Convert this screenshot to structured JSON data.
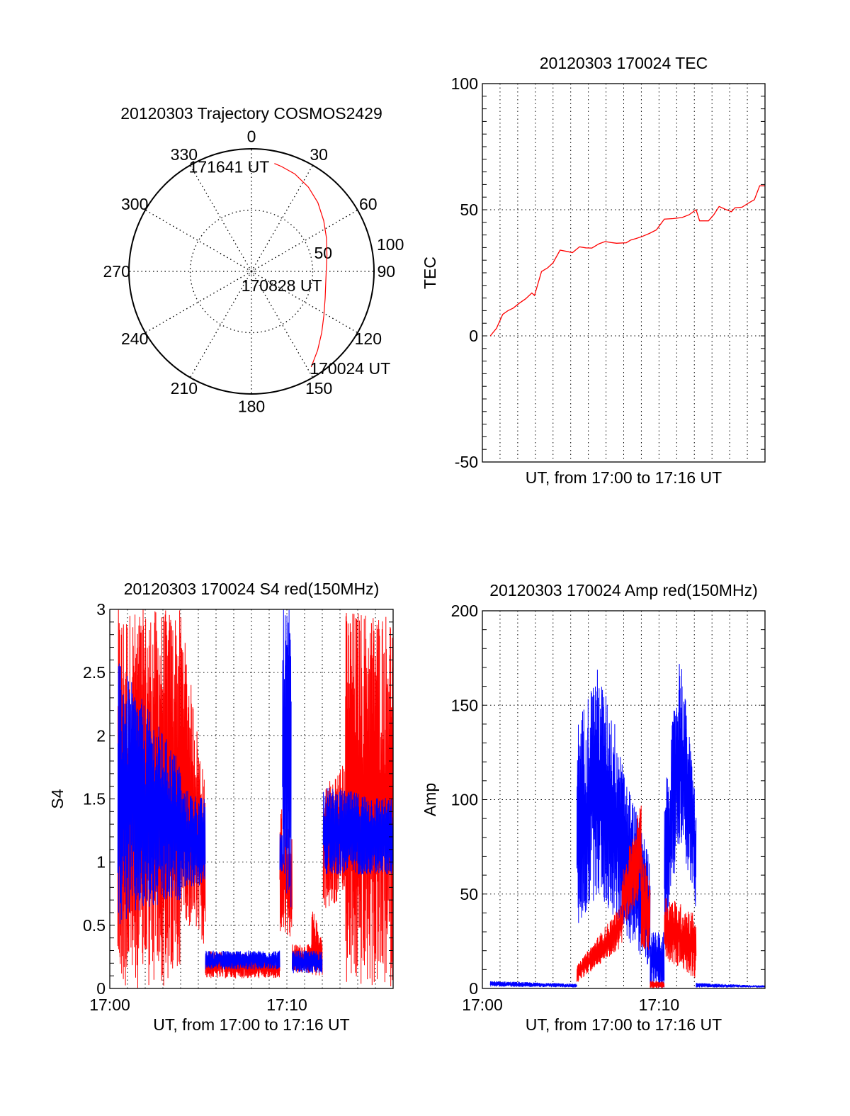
{
  "chart_data": [
    {
      "type": "polar",
      "title": "20120303 Trajectory COSMOS2429",
      "azimuth_labels": [
        "0",
        "30",
        "60",
        "90",
        "120",
        "150",
        "180",
        "210",
        "240",
        "270",
        "300",
        "330"
      ],
      "radial_range": [
        0,
        100
      ],
      "radial_tick_labels": [
        "50",
        "100"
      ],
      "radial_ticks": [
        50,
        100
      ],
      "trajectory": {
        "color": "#ff0000",
        "points": [
          {
            "az": 148,
            "r": 92
          },
          {
            "az": 140,
            "r": 84
          },
          {
            "az": 131,
            "r": 76
          },
          {
            "az": 121,
            "r": 69
          },
          {
            "az": 110,
            "r": 64
          },
          {
            "az": 100,
            "r": 61.5
          },
          {
            "az": 90,
            "r": 61
          },
          {
            "az": 78,
            "r": 63
          },
          {
            "az": 66,
            "r": 67
          },
          {
            "az": 55,
            "r": 72
          },
          {
            "az": 44,
            "r": 78
          },
          {
            "az": 34,
            "r": 83
          },
          {
            "az": 24,
            "r": 87
          },
          {
            "az": 16,
            "r": 89
          },
          {
            "az": 12,
            "r": 90
          }
        ],
        "labels": [
          {
            "text": "170024 UT",
            "az": 148,
            "r": 92
          },
          {
            "text": "170828 UT",
            "az": 90,
            "r": 61
          },
          {
            "text": "171641 UT",
            "az": 12,
            "r": 90
          }
        ]
      }
    },
    {
      "type": "line",
      "title": "20120303 170024 TEC",
      "xlabel": "UT, from 17:00 to 17:16 UT",
      "ylabel": "TEC",
      "xunits": "minutes after 17:00",
      "xlim": [
        0,
        16
      ],
      "ylim": [
        -50,
        100
      ],
      "yticks": [
        -50,
        0,
        50,
        100
      ],
      "ytick_labels": [
        "-50",
        "0",
        "50",
        "100"
      ],
      "ygrid": [
        0,
        50
      ],
      "yminor": 5,
      "xtick_labels": [],
      "series": [
        {
          "color": "#ff0000",
          "x": [
            0.45,
            0.8,
            1.15,
            1.45,
            1.75,
            2.1,
            2.45,
            2.8,
            2.95,
            3.35,
            3.7,
            4.0,
            4.4,
            4.75,
            5.1,
            5.5,
            5.85,
            6.2,
            6.6,
            6.95,
            7.3,
            7.6,
            8.15,
            8.4,
            8.7,
            9.05,
            9.45,
            9.85,
            10.3,
            10.8,
            11.3,
            11.7,
            12.1,
            12.3,
            12.8,
            13.1,
            13.4,
            13.75,
            14.1,
            14.3,
            14.7,
            15.1,
            15.4,
            15.7,
            16.0
          ],
          "y": [
            0,
            3,
            8.5,
            10,
            11,
            13,
            14.7,
            17,
            16,
            25.5,
            27,
            29,
            34,
            33.5,
            33,
            35.3,
            34.9,
            34.8,
            36.5,
            37.4,
            37,
            36.7,
            36.9,
            38,
            38.6,
            39.4,
            40.6,
            42,
            46.3,
            46.5,
            46.9,
            48,
            50,
            45.6,
            45.6,
            48,
            51.3,
            50.2,
            49.2,
            50.8,
            51,
            52.8,
            54,
            59.5,
            59.5
          ]
        }
      ]
    },
    {
      "type": "line",
      "title": "20120303 170024 S4 red(150MHz)",
      "xlabel": "UT, from 17:00 to 17:16 UT",
      "ylabel": "S4",
      "xunits": "minutes after 17:00",
      "xlim": [
        0,
        16
      ],
      "ylim": [
        0,
        3
      ],
      "yticks": [
        0,
        0.5,
        1,
        1.5,
        2,
        2.5,
        3
      ],
      "ytick_labels": [
        "0",
        "0.5",
        "1",
        "1.5",
        "2",
        "2.5",
        "3"
      ],
      "ygrid": [
        0.5,
        1,
        1.5,
        2,
        2.5
      ],
      "yminor": 0.1,
      "xtick_labels": [
        {
          "t": 0,
          "label": "17:00"
        },
        {
          "t": 10,
          "label": "17:10"
        }
      ],
      "series": [
        {
          "color": "#ff0000",
          "envelope": [
            {
              "t": [
                0.45,
                4.0
              ],
              "lo": [
                0,
                0
              ],
              "hi": [
                3,
                3
              ]
            },
            {
              "t": [
                4.0,
                5.4
              ],
              "lo": [
                0.6,
                0.3
              ],
              "hi": [
                3,
                1.6
              ]
            },
            {
              "t": [
                5.4,
                9.6
              ],
              "lo": [
                0.08,
                0.08
              ],
              "hi": [
                0.3,
                0.25
              ]
            },
            {
              "t": [
                9.6,
                10.3
              ],
              "lo": [
                0.4,
                0.4
              ],
              "hi": [
                1.5,
                1.2
              ]
            },
            {
              "t": [
                10.3,
                11.4
              ],
              "lo": [
                0.12,
                0.12
              ],
              "hi": [
                0.35,
                0.35
              ]
            },
            {
              "t": [
                11.4,
                12.0
              ],
              "lo": [
                0.1,
                0.1
              ],
              "hi": [
                0.65,
                0.4
              ]
            },
            {
              "t": [
                12.05,
                13.3
              ],
              "lo": [
                0.6,
                0.7
              ],
              "hi": [
                1.6,
                1.8
              ]
            },
            {
              "t": [
                13.3,
                16.0
              ],
              "lo": [
                0,
                0
              ],
              "hi": [
                3,
                3
              ]
            }
          ]
        },
        {
          "color": "#0000ff",
          "envelope": [
            {
              "t": [
                0.45,
                4.0
              ],
              "lo": [
                0.5,
                0.7
              ],
              "hi": [
                2.6,
                1.8
              ]
            },
            {
              "t": [
                4.0,
                5.4
              ],
              "lo": [
                0.8,
                0.8
              ],
              "hi": [
                1.6,
                1.5
              ]
            },
            {
              "t": [
                5.4,
                9.6
              ],
              "lo": [
                0.15,
                0.15
              ],
              "hi": [
                0.3,
                0.3
              ]
            },
            {
              "t": [
                9.6,
                9.75
              ],
              "lo": [
                0.9,
                0.9
              ],
              "hi": [
                1.3,
                1.3
              ]
            },
            {
              "t": [
                9.75,
                10.25
              ],
              "lo": [
                0.6,
                0.6
              ],
              "hi": [
                3,
                3
              ]
            },
            {
              "t": [
                10.3,
                12.0
              ],
              "lo": [
                0.12,
                0.12
              ],
              "hi": [
                0.3,
                0.3
              ]
            },
            {
              "t": [
                12.05,
                16.0
              ],
              "lo": [
                0.9,
                0.9
              ],
              "hi": [
                1.6,
                1.5
              ]
            }
          ]
        }
      ]
    },
    {
      "type": "line",
      "title": "20120303 170024 Amp red(150MHz)",
      "xlabel": "UT, from 17:00 to 17:16 UT",
      "ylabel": "Amp",
      "xunits": "minutes after 17:00",
      "xlim": [
        0,
        16
      ],
      "ylim": [
        0,
        200
      ],
      "yticks": [
        0,
        50,
        100,
        150,
        200
      ],
      "ytick_labels": [
        "0",
        "50",
        "100",
        "150",
        "200"
      ],
      "ygrid": [
        50,
        100,
        150
      ],
      "yminor": 10,
      "xtick_labels": [
        {
          "t": 0,
          "label": "17:00"
        },
        {
          "t": 10,
          "label": "17:10"
        }
      ],
      "series": [
        {
          "color": "#0000ff",
          "envelope": [
            {
              "t": [
                0.45,
                5.35
              ],
              "lo": [
                1,
                0.5
              ],
              "hi": [
                4,
                2.5
              ]
            },
            {
              "t": [
                5.35,
                6.5
              ],
              "lo": [
                30,
                50
              ],
              "hi": [
                140,
                170
              ]
            },
            {
              "t": [
                6.5,
                7.9
              ],
              "lo": [
                50,
                30
              ],
              "hi": [
                170,
                130
              ]
            },
            {
              "t": [
                7.9,
                9.5
              ],
              "lo": [
                30,
                10
              ],
              "hi": [
                120,
                70
              ]
            },
            {
              "t": [
                9.5,
                10.3
              ],
              "lo": [
                0,
                0
              ],
              "hi": [
                30,
                30
              ]
            },
            {
              "t": [
                10.3,
                11.2
              ],
              "lo": [
                25,
                80
              ],
              "hi": [
                100,
                180
              ]
            },
            {
              "t": [
                11.2,
                12.1
              ],
              "lo": [
                80,
                40
              ],
              "hi": [
                180,
                100
              ]
            },
            {
              "t": [
                12.1,
                16.0
              ],
              "lo": [
                0.5,
                0.5
              ],
              "hi": [
                3,
                1.5
              ]
            }
          ]
        },
        {
          "color": "#ff0000",
          "envelope": [
            {
              "t": [
                5.35,
                7.9
              ],
              "lo": [
                3,
                22
              ],
              "hi": [
                12,
                45
              ]
            },
            {
              "t": [
                7.9,
                9.0
              ],
              "lo": [
                30,
                50
              ],
              "hi": [
                60,
                100
              ]
            },
            {
              "t": [
                9.0,
                9.5
              ],
              "lo": [
                20,
                20
              ],
              "hi": [
                80,
                60
              ]
            },
            {
              "t": [
                9.5,
                10.3
              ],
              "lo": [
                0,
                0
              ],
              "hi": [
                4,
                4
              ]
            },
            {
              "t": [
                10.3,
                12.1
              ],
              "lo": [
                15,
                5
              ],
              "hi": [
                50,
                40
              ]
            }
          ]
        }
      ]
    }
  ]
}
